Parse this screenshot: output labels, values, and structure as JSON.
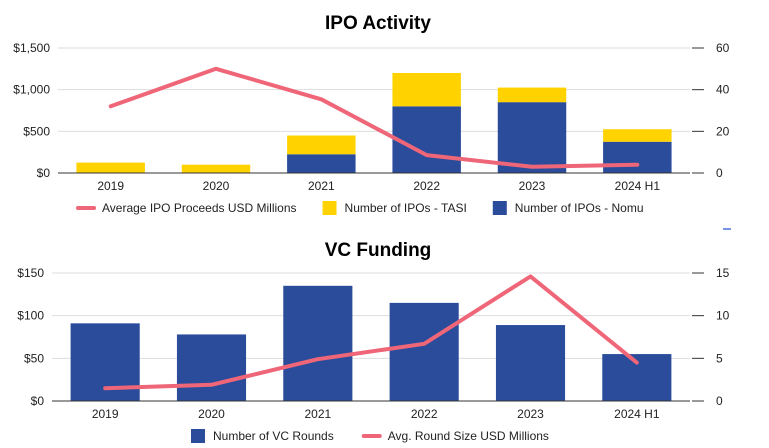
{
  "colors": {
    "tasi": "#FFD200",
    "nomu": "#2B4C9B",
    "line": "#EE6677",
    "axis": "#333333",
    "grid": "#DDDDDD"
  },
  "chart_data": [
    {
      "type": "bar",
      "title": "IPO Activity",
      "categories": [
        "2019",
        "2020",
        "2021",
        "2022",
        "2023",
        "2024 H1"
      ],
      "stacked": true,
      "series": [
        {
          "name": "Number of IPOs - Nomu",
          "kind": "bar",
          "axis": "right",
          "values": [
            0,
            0,
            9,
            32,
            34,
            15
          ]
        },
        {
          "name": "Number of IPOs - TASI",
          "kind": "bar",
          "axis": "right",
          "values": [
            5,
            4,
            9,
            16,
            7,
            6
          ]
        },
        {
          "name": "Average IPO Proceeds USD Millions",
          "kind": "line",
          "axis": "left",
          "values": [
            800,
            1250,
            885,
            215,
            75,
            100
          ]
        }
      ],
      "legend_order": [
        "Average IPO Proceeds USD Millions",
        "Number of IPOs - TASI",
        "Number of IPOs - Nomu"
      ],
      "left_axis": {
        "range": [
          0,
          1500
        ],
        "ticks": [
          "$0",
          "$500",
          "$1,000",
          "$1,500"
        ]
      },
      "right_axis": {
        "range": [
          0,
          60
        ],
        "ticks": [
          "0",
          "20",
          "40",
          "60"
        ]
      },
      "legend_position": "bottom",
      "grid": true
    },
    {
      "type": "bar",
      "title": "VC Funding",
      "categories": [
        "2019",
        "2020",
        "2021",
        "2022",
        "2023",
        "2024 H1"
      ],
      "series": [
        {
          "name": "Number of VC Rounds",
          "kind": "bar",
          "axis": "left",
          "values": [
            91,
            78,
            135,
            115,
            89,
            55
          ]
        },
        {
          "name": "Avg. Round Size USD Millions",
          "kind": "line",
          "axis": "right",
          "values": [
            1.5,
            1.9,
            4.9,
            6.7,
            14.6,
            4.5
          ]
        }
      ],
      "legend_order": [
        "Number of VC Rounds",
        "Avg. Round Size USD Millions"
      ],
      "left_axis": {
        "range": [
          0,
          150
        ],
        "ticks": [
          "$0",
          "$50",
          "$100",
          "$150"
        ]
      },
      "right_axis": {
        "range": [
          0,
          15
        ],
        "ticks": [
          "0",
          "5",
          "10",
          "15"
        ]
      },
      "legend_position": "bottom",
      "grid": true
    }
  ]
}
